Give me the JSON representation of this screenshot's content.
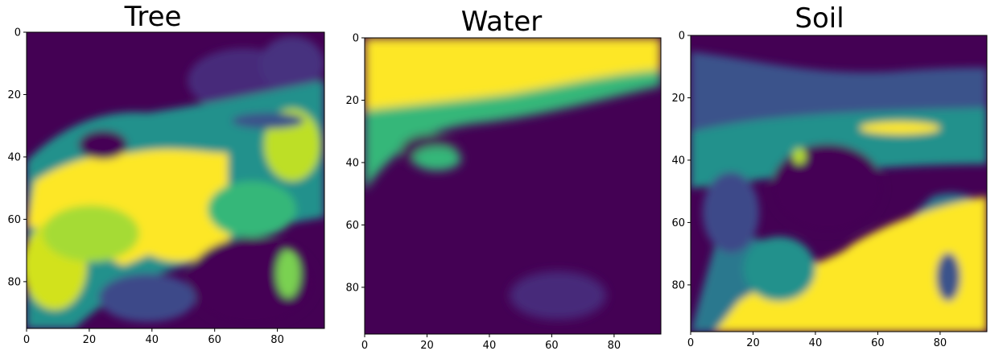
{
  "chart_data": [
    {
      "type": "heatmap",
      "title": "Tree",
      "colormap": "viridis",
      "xlim": [
        0,
        95
      ],
      "ylim": [
        95,
        0
      ],
      "xticks": [
        0,
        20,
        40,
        60,
        80
      ],
      "yticks": [
        0,
        20,
        40,
        60,
        80
      ],
      "xtick_labels": [
        "0",
        "20",
        "40",
        "60",
        "80"
      ],
      "ytick_labels": [
        "0",
        "20",
        "40",
        "60",
        "80"
      ]
    },
    {
      "type": "heatmap",
      "title": "Water",
      "colormap": "viridis",
      "xlim": [
        0,
        95
      ],
      "ylim": [
        95,
        0
      ],
      "xticks": [
        0,
        20,
        40,
        60,
        80
      ],
      "yticks": [
        0,
        20,
        40,
        60,
        80
      ],
      "xtick_labels": [
        "0",
        "20",
        "40",
        "60",
        "80"
      ],
      "ytick_labels": [
        "0",
        "20",
        "40",
        "60",
        "80"
      ]
    },
    {
      "type": "heatmap",
      "title": "Soil",
      "colormap": "viridis",
      "xlim": [
        0,
        95
      ],
      "ylim": [
        95,
        0
      ],
      "xticks": [
        0,
        20,
        40,
        60,
        80
      ],
      "yticks": [
        0,
        20,
        40,
        60,
        80
      ],
      "xtick_labels": [
        "0",
        "20",
        "40",
        "60",
        "80"
      ],
      "ytick_labels": [
        "0",
        "20",
        "40",
        "60",
        "80"
      ]
    }
  ]
}
